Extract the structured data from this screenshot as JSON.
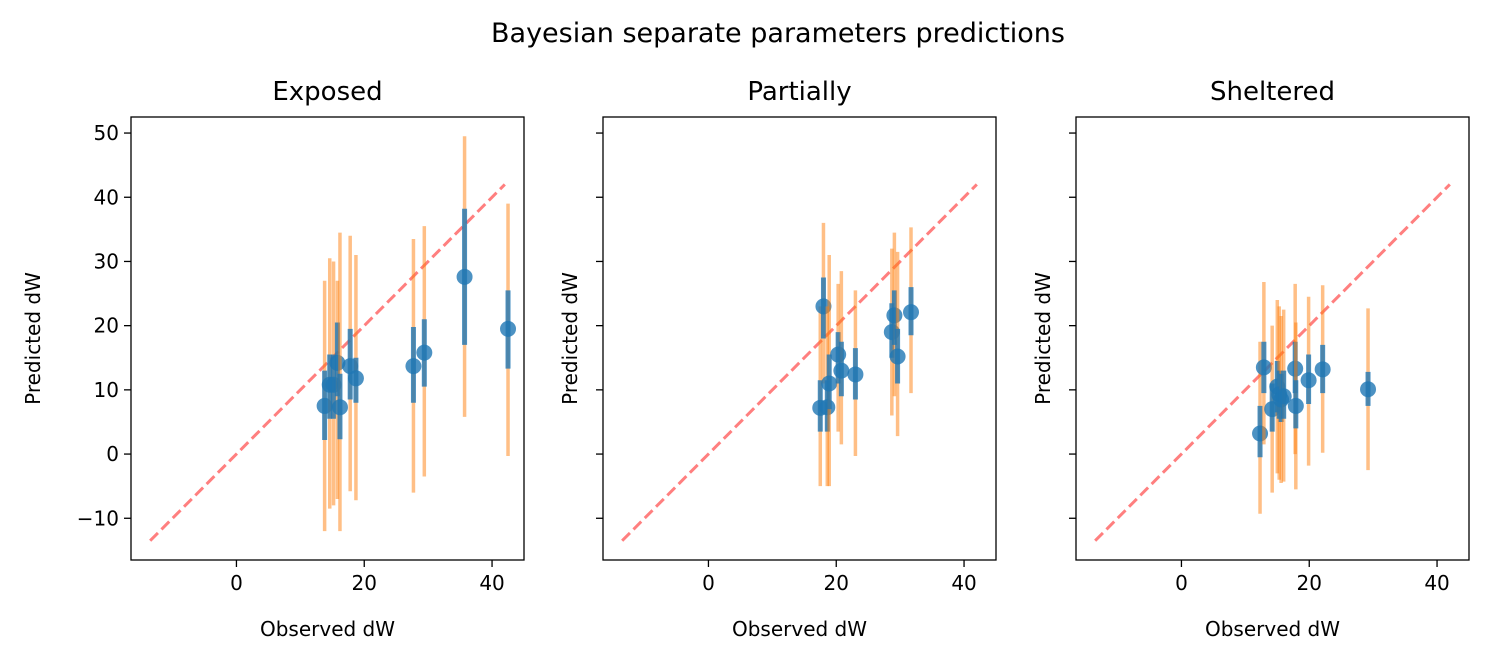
{
  "chart_data": {
    "suptitle": "Bayesian separate parameters predictions",
    "shared": {
      "type": "scatter",
      "xlabel": "Observed dW",
      "ylabel": "Predicted dW",
      "xlim": [
        -16.5,
        45
      ],
      "ylim": [
        -16.5,
        52.5
      ],
      "xticks": [
        0,
        20,
        40
      ],
      "yticks": [
        -10,
        0,
        10,
        20,
        30,
        40,
        50
      ],
      "reference_line": {
        "from": -13.5,
        "to": 42,
        "style": "dashed",
        "color": "#ff0000"
      },
      "colors": {
        "points": "#1f77b4",
        "interval_95": "#ff7f0e",
        "interval_50": "#1f77b4"
      }
    },
    "panels": [
      {
        "title": "Exposed",
        "ytick_labels_visible": true,
        "points": [
          {
            "x": 13.8,
            "y": 7.5,
            "lo95": -12.0,
            "hi95": 27.0,
            "lo50": 2.2,
            "hi50": 13.0
          },
          {
            "x": 14.6,
            "y": 10.8,
            "lo95": -8.5,
            "hi95": 30.5,
            "lo50": 5.5,
            "hi50": 15.5
          },
          {
            "x": 15.2,
            "y": 10.8,
            "lo95": -8.0,
            "hi95": 30.0,
            "lo50": 5.5,
            "hi50": 15.5
          },
          {
            "x": 15.8,
            "y": 14.2,
            "lo95": -7.0,
            "hi95": 27.0,
            "lo50": 9.0,
            "hi50": 20.5
          },
          {
            "x": 16.2,
            "y": 7.3,
            "lo95": -12.0,
            "hi95": 34.5,
            "lo50": 2.3,
            "hi50": 12.5
          },
          {
            "x": 17.8,
            "y": 13.7,
            "lo95": -5.8,
            "hi95": 34.0,
            "lo50": 8.5,
            "hi50": 19.5
          },
          {
            "x": 18.7,
            "y": 11.8,
            "lo95": -7.2,
            "hi95": 31.0,
            "lo50": 8.0,
            "hi50": 15.0
          },
          {
            "x": 27.7,
            "y": 13.7,
            "lo95": -6.0,
            "hi95": 33.5,
            "lo50": 8.0,
            "hi50": 19.8
          },
          {
            "x": 29.4,
            "y": 15.8,
            "lo95": -3.5,
            "hi95": 35.5,
            "lo50": 10.5,
            "hi50": 21.0
          },
          {
            "x": 35.7,
            "y": 27.6,
            "lo95": 5.8,
            "hi95": 49.5,
            "lo50": 17.0,
            "hi50": 38.2
          },
          {
            "x": 42.5,
            "y": 19.5,
            "lo95": -0.3,
            "hi95": 39.0,
            "lo50": 13.3,
            "hi50": 25.5
          }
        ]
      },
      {
        "title": "Partially",
        "ytick_labels_visible": false,
        "points": [
          {
            "x": 17.5,
            "y": 7.2,
            "lo95": -5.0,
            "hi95": 23.0,
            "lo50": 3.5,
            "hi50": 11.5
          },
          {
            "x": 18.0,
            "y": 23.0,
            "lo95": 11.0,
            "hi95": 36.0,
            "lo50": 18.0,
            "hi50": 27.5
          },
          {
            "x": 18.6,
            "y": 7.3,
            "lo95": -5.0,
            "hi95": 23.0,
            "lo50": 3.5,
            "hi50": 11.5
          },
          {
            "x": 18.9,
            "y": 11.0,
            "lo95": -5.0,
            "hi95": 31.0,
            "lo50": 7.0,
            "hi50": 15.5
          },
          {
            "x": 20.3,
            "y": 15.5,
            "lo95": 3.5,
            "hi95": 26.5,
            "lo50": 11.0,
            "hi50": 19.0
          },
          {
            "x": 20.8,
            "y": 13.0,
            "lo95": 1.5,
            "hi95": 28.5,
            "lo50": 9.0,
            "hi50": 17.5
          },
          {
            "x": 23.0,
            "y": 12.4,
            "lo95": -0.3,
            "hi95": 25.5,
            "lo50": 8.5,
            "hi50": 16.5
          },
          {
            "x": 28.7,
            "y": 19.0,
            "lo95": 6.0,
            "hi95": 32.0,
            "lo50": 15.0,
            "hi50": 23.5
          },
          {
            "x": 29.1,
            "y": 21.6,
            "lo95": 9.0,
            "hi95": 34.5,
            "lo50": 17.0,
            "hi50": 25.5
          },
          {
            "x": 29.6,
            "y": 15.2,
            "lo95": 2.8,
            "hi95": 31.5,
            "lo50": 11.0,
            "hi50": 19.5
          },
          {
            "x": 31.7,
            "y": 22.1,
            "lo95": 9.5,
            "hi95": 35.3,
            "lo50": 18.5,
            "hi50": 26.0
          }
        ]
      },
      {
        "title": "Sheltered",
        "ytick_labels_visible": false,
        "points": [
          {
            "x": 12.3,
            "y": 3.2,
            "lo95": -9.3,
            "hi95": 17.5,
            "lo50": -0.5,
            "hi50": 7.5
          },
          {
            "x": 12.9,
            "y": 13.5,
            "lo95": 1.5,
            "hi95": 26.8,
            "lo50": 9.5,
            "hi50": 17.5
          },
          {
            "x": 14.2,
            "y": 7.0,
            "lo95": -6.0,
            "hi95": 20.0,
            "lo50": 3.5,
            "hi50": 11.0
          },
          {
            "x": 15.0,
            "y": 10.5,
            "lo95": -3.0,
            "hi95": 24.0,
            "lo50": 6.5,
            "hi50": 14.5
          },
          {
            "x": 15.3,
            "y": 9.3,
            "lo95": -4.0,
            "hi95": 23.0,
            "lo50": 5.5,
            "hi50": 13.0
          },
          {
            "x": 15.6,
            "y": 8.5,
            "lo95": -4.5,
            "hi95": 21.5,
            "lo50": 5.0,
            "hi50": 12.5
          },
          {
            "x": 16.0,
            "y": 9.0,
            "lo95": -4.3,
            "hi95": 22.5,
            "lo50": 5.5,
            "hi50": 13.0
          },
          {
            "x": 17.8,
            "y": 13.3,
            "lo95": 0.0,
            "hi95": 26.5,
            "lo50": 9.5,
            "hi50": 17.5
          },
          {
            "x": 17.9,
            "y": 7.5,
            "lo95": -5.5,
            "hi95": 20.5,
            "lo50": 4.0,
            "hi50": 11.5
          },
          {
            "x": 19.9,
            "y": 11.5,
            "lo95": -1.8,
            "hi95": 24.5,
            "lo50": 7.8,
            "hi50": 15.5
          },
          {
            "x": 22.1,
            "y": 13.2,
            "lo95": 0.2,
            "hi95": 26.3,
            "lo50": 9.5,
            "hi50": 17.0
          },
          {
            "x": 29.2,
            "y": 10.1,
            "lo95": -2.5,
            "hi95": 22.7,
            "lo50": 7.5,
            "hi50": 12.8
          }
        ]
      }
    ]
  }
}
